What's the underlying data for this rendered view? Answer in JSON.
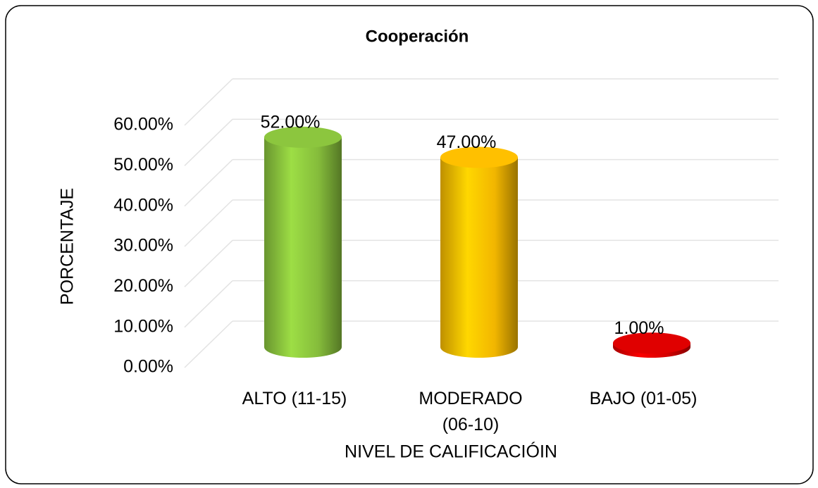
{
  "chart_data": {
    "type": "bar3d",
    "title": "Cooperación",
    "xlabel": "NIVEL DE CALIFICACIÓIN",
    "ylabel": "PORCENTAJE",
    "categories": [
      "ALTO (11-15)",
      "MODERADO (06-10)",
      "BAJO (01-05)"
    ],
    "values": [
      52,
      47,
      1
    ],
    "value_labels": [
      "52.00%",
      "47.00%",
      "1.00%"
    ],
    "colors": [
      "#8cc63e",
      "#ffc000",
      "#e00000"
    ],
    "ylim": [
      0,
      60
    ],
    "yticks": [
      {
        "value": 0,
        "label": "0.00%"
      },
      {
        "value": 10,
        "label": "10.00%"
      },
      {
        "value": 20,
        "label": "20.00%"
      },
      {
        "value": 30,
        "label": "30.00%"
      },
      {
        "value": 40,
        "label": "40.00%"
      },
      {
        "value": 50,
        "label": "50.00%"
      },
      {
        "value": 60,
        "label": "60.00%"
      }
    ],
    "grid": true
  }
}
